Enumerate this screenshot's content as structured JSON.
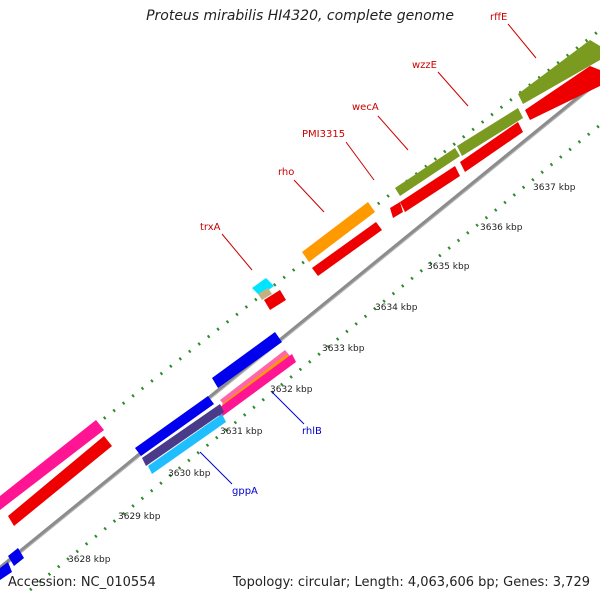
{
  "title": "Proteus mirabilis HI4320, complete genome",
  "accession": "Accession: NC_010554",
  "summary": "Topology: circular; Length: 4,063,606 bp; Genes: 3,729",
  "colors": {
    "backbone": "#8c8c8c",
    "ticks": "#2e8b2e",
    "red_label": "#cc0000",
    "blue_label": "#0000cc"
  },
  "ticks": [
    {
      "label": "3628 kbp",
      "pos": 3628
    },
    {
      "label": "3629 kbp",
      "pos": 3629
    },
    {
      "label": "3630 kbp",
      "pos": 3630
    },
    {
      "label": "3631 kbp",
      "pos": 3631
    },
    {
      "label": "3632 kbp",
      "pos": 3632
    },
    {
      "label": "3633 kbp",
      "pos": 3633
    },
    {
      "label": "3634 kbp",
      "pos": 3634
    },
    {
      "label": "3635 kbp",
      "pos": 3635
    },
    {
      "label": "3636 kbp",
      "pos": 3636
    },
    {
      "label": "3637 kbp",
      "pos": 3637
    }
  ],
  "genes": [
    {
      "name": "trxA",
      "color": "red"
    },
    {
      "name": "rho",
      "color": "red"
    },
    {
      "name": "PMI3315",
      "color": "red"
    },
    {
      "name": "wecA",
      "color": "red"
    },
    {
      "name": "wzzE",
      "color": "red"
    },
    {
      "name": "rffE",
      "color": "red"
    },
    {
      "name": "rhlB",
      "color": "blue"
    },
    {
      "name": "gppA",
      "color": "blue"
    }
  ]
}
